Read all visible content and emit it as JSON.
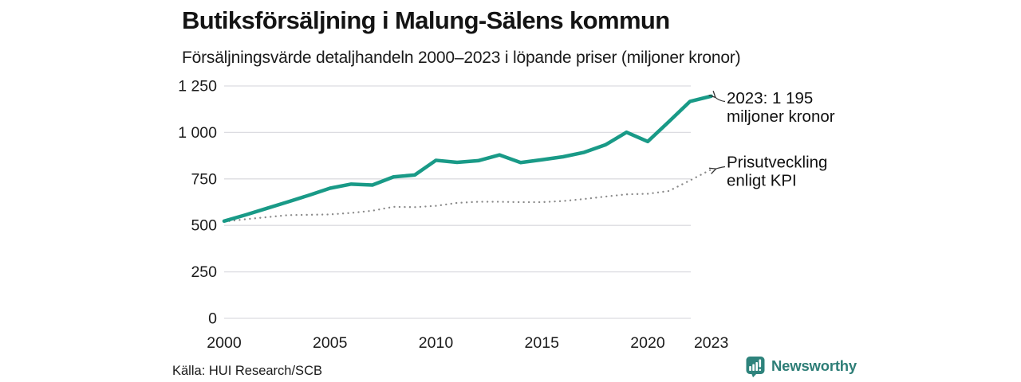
{
  "header": {
    "title": "Butiksförsäljning i Malung-Sälens kommun",
    "subtitle": "Försäljningsvärde detaljhandeln 2000–2023 i löpande priser (miljoner kronor)"
  },
  "chart_data": {
    "type": "line",
    "x": [
      2000,
      2001,
      2002,
      2003,
      2004,
      2005,
      2006,
      2007,
      2008,
      2009,
      2010,
      2011,
      2012,
      2013,
      2014,
      2015,
      2016,
      2017,
      2018,
      2019,
      2020,
      2021,
      2022,
      2023
    ],
    "series": [
      {
        "name": "Försäljningsvärde detaljhandeln, löpande priser",
        "line_style": "solid",
        "color": "#199a87",
        "values": [
          523,
          556,
          591,
          626,
          662,
          700,
          722,
          717,
          761,
          771,
          850,
          839,
          848,
          879,
          838,
          853,
          869,
          893,
          933,
          1001,
          951,
          1058,
          1167,
          1195
        ]
      },
      {
        "name": "Prisutveckling enligt KPI",
        "line_style": "dotted",
        "color": "#8a8a8a",
        "values": [
          520,
          533,
          544,
          555,
          557,
          559,
          567,
          579,
          600,
          598,
          605,
          621,
          627,
          627,
          625,
          625,
          631,
          642,
          655,
          667,
          670,
          685,
          742,
          801
        ]
      }
    ],
    "ylim": [
      0,
      1250
    ],
    "yticks": [
      0,
      250,
      500,
      750,
      1000,
      1250
    ],
    "ytick_labels": [
      "0",
      "250",
      "500",
      "750",
      "1 000",
      "1 250"
    ],
    "xticks": [
      2000,
      2005,
      2010,
      2015,
      2020,
      2023
    ],
    "grid": "horizontal",
    "annotations": [
      {
        "target": "last value of sales line",
        "lines": [
          "2023: 1 195",
          "miljoner kronor"
        ]
      },
      {
        "target": "end of KPI dotted line",
        "lines": [
          "Prisutveckling",
          "enligt KPI"
        ]
      }
    ]
  },
  "footer": {
    "source": "Källa: HUI Research/SCB",
    "brand": "Newsworthy"
  },
  "colors": {
    "sales_line": "#199a87",
    "kpi_line": "#8a8a8a",
    "grid": "#dcdce1",
    "text": "#1b1b1b",
    "brand_teal": "#2e7e77",
    "arrow": "#333333"
  }
}
